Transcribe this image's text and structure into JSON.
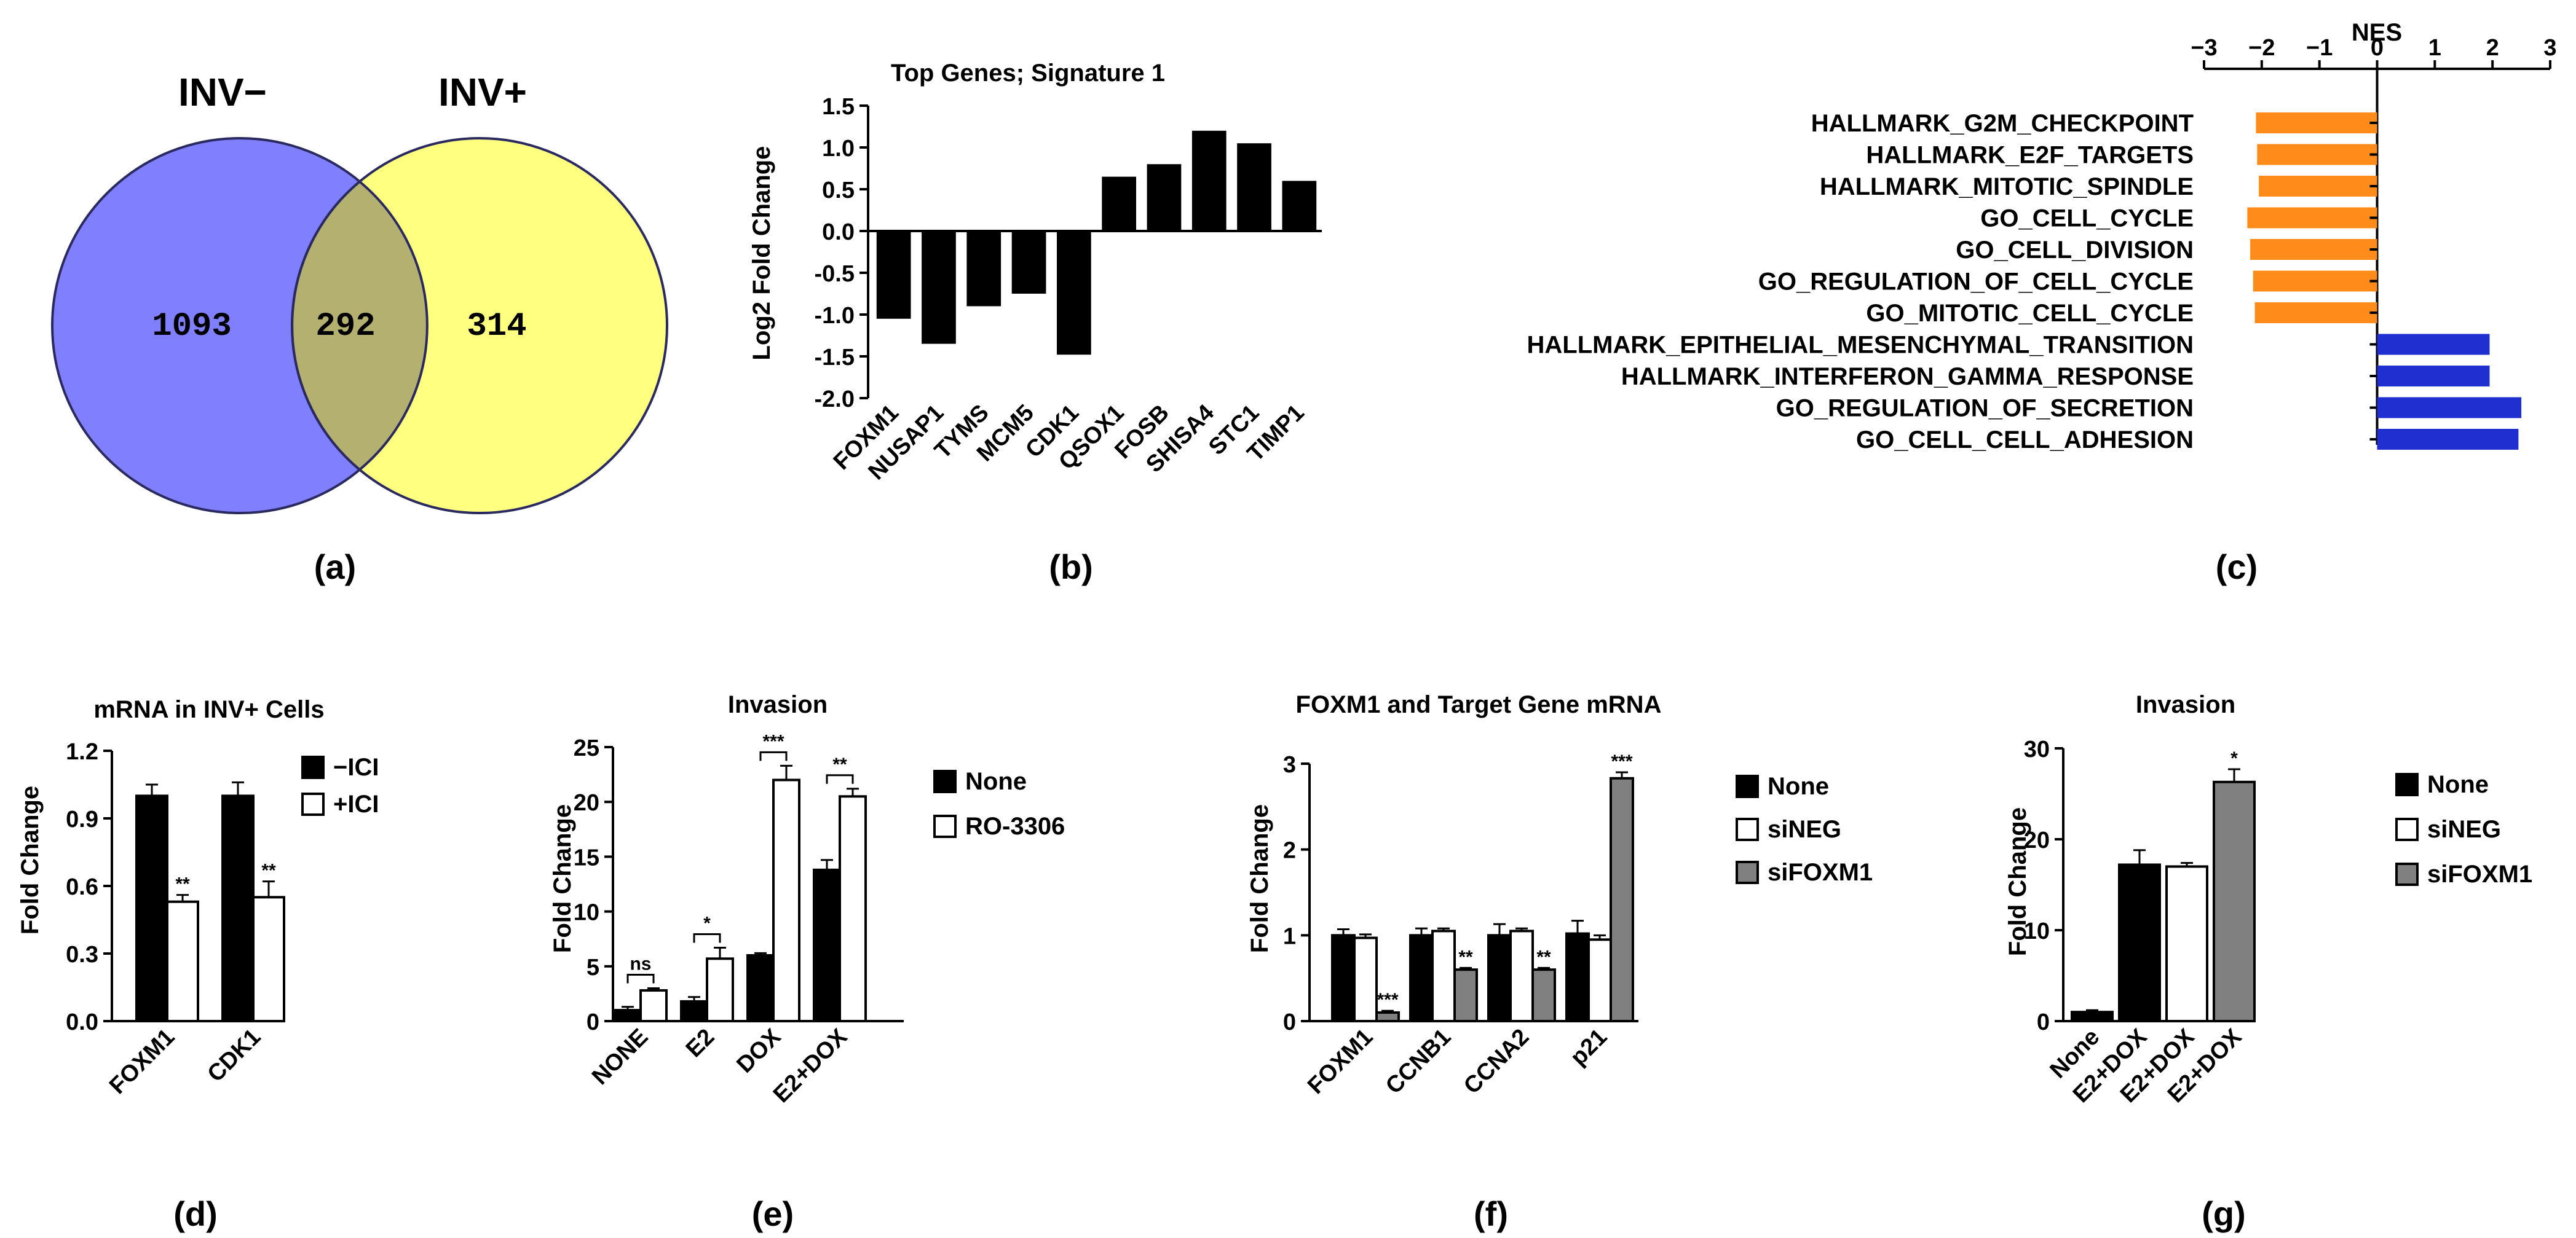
{
  "colors": {
    "venn_left": "#8080ff",
    "venn_right": "#ffff80",
    "venn_overlap": "#b3b070",
    "nes_negative": "#ff8c1a",
    "nes_positive": "#1f2fd0",
    "bar_black": "#000000",
    "bar_white": "#ffffff",
    "bar_gray": "#808080"
  },
  "panel_labels": [
    "(a)",
    "(b)",
    "(c)",
    "(d)",
    "(e)",
    "(f)",
    "(g)"
  ],
  "chart_data": [
    {
      "panel": "a",
      "type": "venn",
      "sets": [
        {
          "name": "INV−",
          "only": "1093"
        },
        {
          "name": "INV+",
          "only": "314"
        }
      ],
      "overlap": "292"
    },
    {
      "panel": "b",
      "type": "bar",
      "title": "Top Genes; Signature 1",
      "xlabel": "",
      "ylabel": "Log2 Fold Change",
      "ylim": [
        -2.0,
        1.5
      ],
      "yticks": [
        -2.0,
        -1.5,
        -1.0,
        -0.5,
        0.0,
        0.5,
        1.0,
        1.5
      ],
      "ytick_labels": [
        "-2.0",
        "-1.5",
        "-1.0",
        "-0.5",
        "0.0",
        "0.5",
        "1.0",
        "1.5"
      ],
      "categories": [
        "FOXM1",
        "NUSAP1",
        "TYMS",
        "MCM5",
        "CDK1",
        "QSOX1",
        "FOSB",
        "SHISA4",
        "STC1",
        "TIMP1"
      ],
      "values": [
        -1.05,
        -1.35,
        -0.9,
        -0.75,
        -1.48,
        0.65,
        0.8,
        1.2,
        1.05,
        0.6
      ]
    },
    {
      "panel": "c",
      "type": "bar",
      "orientation": "horizontal",
      "title": "NES",
      "xlim": [
        -3,
        3
      ],
      "xticks": [
        -3,
        -2,
        -1,
        0,
        1,
        2,
        3
      ],
      "xtick_labels": [
        "−3",
        "−2",
        "−1",
        "0",
        "1",
        "2",
        "3"
      ],
      "categories": [
        "HALLMARK_G2M_CHECKPOINT",
        "HALLMARK_E2F_TARGETS",
        "HALLMARK_MITOTIC_SPINDLE",
        "GO_CELL_CYCLE",
        "GO_CELL_DIVISION",
        "GO_REGULATION_OF_CELL_CYCLE",
        "GO_MITOTIC_CELL_CYCLE",
        "HALLMARK_EPITHELIAL_MESENCHYMAL_TRANSITION",
        "HALLMARK_INTERFERON_GAMMA_RESPONSE",
        "GO_REGULATION_OF_SECRETION",
        "GO_CELL_CELL_ADHESION"
      ],
      "values": [
        -2.1,
        -2.08,
        -2.05,
        -2.25,
        -2.2,
        -2.15,
        -2.12,
        1.95,
        1.95,
        2.5,
        2.45
      ]
    },
    {
      "panel": "d",
      "type": "bar",
      "title": "mRNA in INV+ Cells",
      "ylabel": "Fold Change",
      "ylim": [
        0,
        1.2
      ],
      "yticks": [
        0.0,
        0.3,
        0.6,
        0.9,
        1.2
      ],
      "ytick_labels": [
        "0.0",
        "0.3",
        "0.6",
        "0.9",
        "1.2"
      ],
      "categories": [
        "FOXM1",
        "CDK1"
      ],
      "series": [
        {
          "name": "−ICI",
          "fill": "#000000",
          "values": [
            1.0,
            1.0
          ],
          "errors": [
            0.05,
            0.06
          ],
          "sig": [
            "",
            ""
          ]
        },
        {
          "name": "+ICI",
          "fill": "#ffffff",
          "values": [
            0.53,
            0.55
          ],
          "errors": [
            0.03,
            0.07
          ],
          "sig": [
            "**",
            "**"
          ]
        }
      ]
    },
    {
      "panel": "e",
      "type": "bar",
      "title": "Invasion",
      "ylabel": "Fold Change",
      "ylim": [
        0,
        25
      ],
      "yticks": [
        0,
        5,
        10,
        15,
        20,
        25
      ],
      "ytick_labels": [
        "0",
        "5",
        "10",
        "15",
        "20",
        "25"
      ],
      "categories": [
        "NONE",
        "E2",
        "DOX",
        "E2+DOX"
      ],
      "series": [
        {
          "name": "None",
          "fill": "#000000",
          "values": [
            1.0,
            1.8,
            6.0,
            13.8
          ],
          "errors": [
            0.3,
            0.4,
            0.2,
            0.9
          ]
        },
        {
          "name": "RO-3306",
          "fill": "#ffffff",
          "values": [
            2.8,
            5.7,
            22.0,
            20.5
          ],
          "errors": [
            0.2,
            1.0,
            1.3,
            0.7
          ]
        }
      ],
      "comparisons": [
        "ns",
        "*",
        "***",
        "**"
      ]
    },
    {
      "panel": "f",
      "type": "bar",
      "title": "FOXM1 and Target Gene mRNA",
      "ylabel": "Fold Change",
      "ylim": [
        0,
        3
      ],
      "yticks": [
        0,
        1,
        2,
        3
      ],
      "ytick_labels": [
        "0",
        "1",
        "2",
        "3"
      ],
      "categories": [
        "FOXM1",
        "CCNB1",
        "CCNA2",
        "p21"
      ],
      "series": [
        {
          "name": "None",
          "fill": "#000000",
          "values": [
            1.0,
            1.0,
            1.0,
            1.02
          ],
          "errors": [
            0.07,
            0.08,
            0.13,
            0.15
          ],
          "sig": [
            "",
            "",
            "",
            ""
          ]
        },
        {
          "name": "siNEG",
          "fill": "#ffffff",
          "values": [
            0.97,
            1.05,
            1.05,
            0.95
          ],
          "errors": [
            0.04,
            0.03,
            0.03,
            0.05
          ],
          "sig": [
            "",
            "",
            "",
            ""
          ]
        },
        {
          "name": "siFOXM1",
          "fill": "#808080",
          "values": [
            0.1,
            0.6,
            0.6,
            2.83
          ],
          "errors": [
            0.02,
            0.02,
            0.02,
            0.07
          ],
          "sig": [
            "***",
            "**",
            "**",
            "***"
          ]
        }
      ]
    },
    {
      "panel": "g",
      "type": "bar",
      "title": "Invasion",
      "ylabel": "Fold Change",
      "ylim": [
        0,
        30
      ],
      "yticks": [
        0,
        10,
        20,
        30
      ],
      "ytick_labels": [
        "0",
        "10",
        "20",
        "30"
      ],
      "categories": [
        "None",
        "E2+DOX",
        "E2+DOX",
        "E2+DOX"
      ],
      "values": [
        1.0,
        17.2,
        17.0,
        26.3
      ],
      "errors": [
        0.2,
        1.6,
        0.4,
        1.4
      ],
      "bar_fills": [
        "#000000",
        "#000000",
        "#ffffff",
        "#808080"
      ],
      "sig": [
        "",
        "",
        "",
        "*"
      ],
      "legend": [
        {
          "name": "None",
          "fill": "#000000"
        },
        {
          "name": "siNEG",
          "fill": "#ffffff"
        },
        {
          "name": "siFOXM1",
          "fill": "#808080"
        }
      ]
    }
  ]
}
